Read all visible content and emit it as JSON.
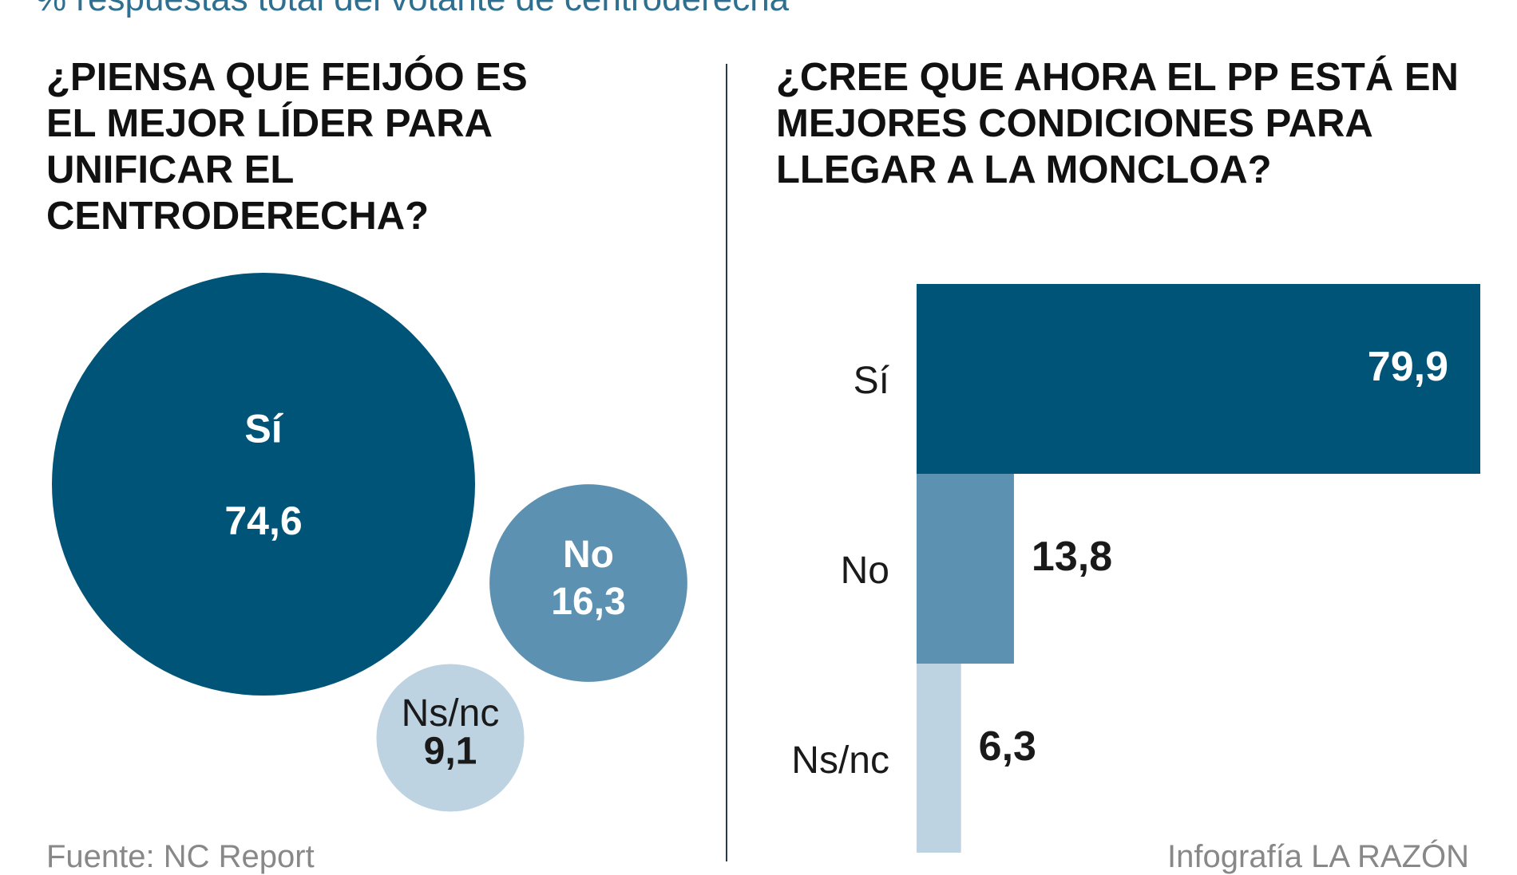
{
  "subtitle": "% respuestas total del votante de centroderecha",
  "chart_data": [
    {
      "type": "bubble",
      "title": "¿PIENSA QUE FEIJÓO ES EL MEJOR LÍDER PARA UNIFICAR EL CENTRODERECHA?",
      "categories": [
        "Sí",
        "No",
        "Ns/nc"
      ],
      "values": [
        74.6,
        16.3,
        9.1
      ],
      "value_labels": [
        "74,6",
        "16,3",
        "9,1"
      ],
      "colors": [
        "#005478",
        "#5c91b1",
        "#bdd3e1"
      ]
    },
    {
      "type": "bar",
      "orientation": "horizontal",
      "title": "¿CREE QUE AHORA EL PP ESTÁ EN MEJORES CONDICIONES PARA LLEGAR A LA MONCLOA?",
      "categories": [
        "Sí",
        "No",
        "Ns/nc"
      ],
      "values": [
        79.9,
        13.8,
        6.3
      ],
      "value_labels": [
        "79,9",
        "13,8",
        "6,3"
      ],
      "colors": [
        "#005478",
        "#5c91b1",
        "#bdd3e1"
      ],
      "xlim": [
        0,
        79.9
      ]
    }
  ],
  "footer": {
    "source": "Fuente: NC Report",
    "credit": "Infografía LA RAZÓN"
  }
}
